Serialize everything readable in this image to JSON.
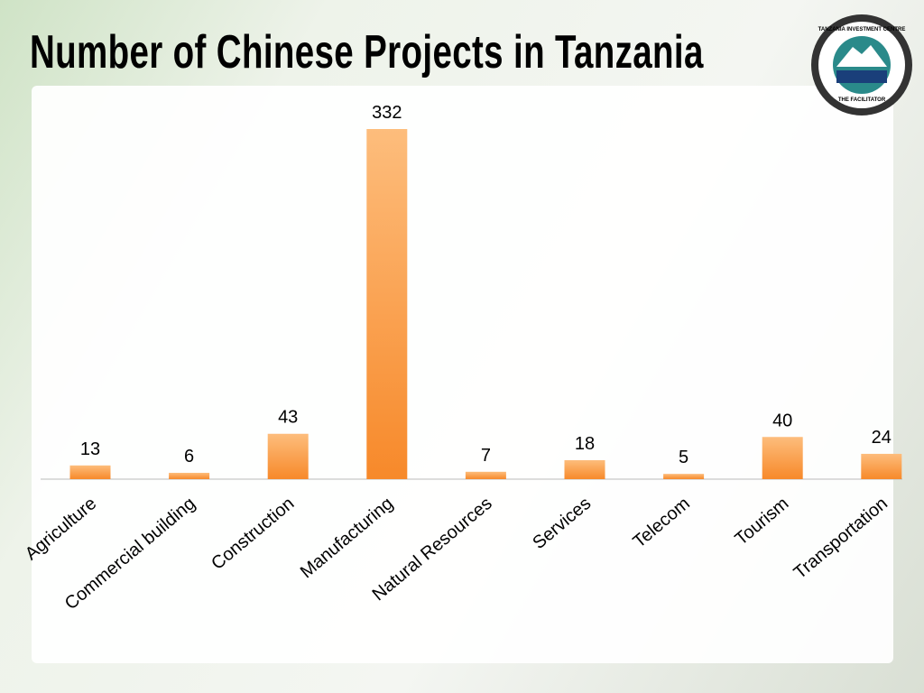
{
  "chart_data": {
    "type": "bar",
    "title": "Number of Chinese Projects in Tanzania",
    "categories": [
      "Agriculture",
      "Commercial building",
      "Construction",
      "Manufacturing",
      "Natural Resources",
      "Services",
      "Telecom",
      "Tourism",
      "Transportation"
    ],
    "values": [
      13,
      6,
      43,
      332,
      7,
      18,
      5,
      40,
      24
    ],
    "color": "#f7892a"
  },
  "logo": {
    "top": "TANZANIA INVESTMENT CENTRE",
    "bottom": "THE FACILITATOR"
  }
}
